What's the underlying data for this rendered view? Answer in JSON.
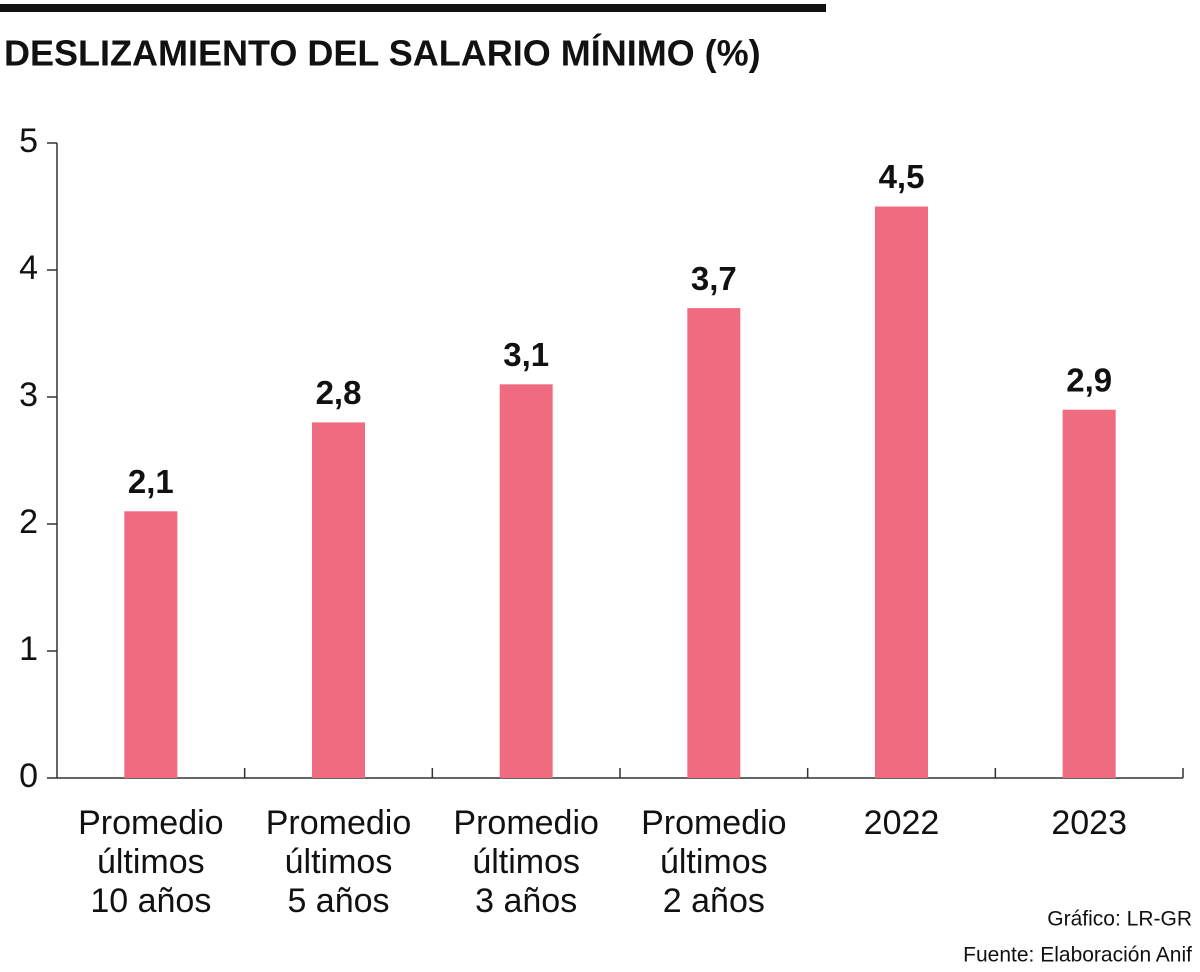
{
  "chart_data": {
    "type": "bar",
    "title": "DESLIZAMIENTO DEL SALARIO MÍNIMO (%)",
    "categories": [
      [
        "Promedio",
        "últimos",
        "10 años"
      ],
      [
        "Promedio",
        "últimos",
        "5 años"
      ],
      [
        "Promedio",
        "últimos",
        "3 años"
      ],
      [
        "Promedio",
        "últimos",
        "2 años"
      ],
      [
        "2022"
      ],
      [
        "2023"
      ]
    ],
    "values": [
      2.1,
      2.8,
      3.1,
      3.7,
      4.5,
      2.9
    ],
    "value_labels": [
      "2,1",
      "2,8",
      "3,1",
      "3,7",
      "4,5",
      "2,9"
    ],
    "color": "#ee6b80",
    "ylim": [
      0,
      5
    ],
    "yticks": [
      0,
      1,
      2,
      3,
      4,
      5
    ],
    "grid": false
  },
  "footer": {
    "credit": "Gráfico: LR-GR",
    "source": "Fuente: Elaboración Anif"
  }
}
